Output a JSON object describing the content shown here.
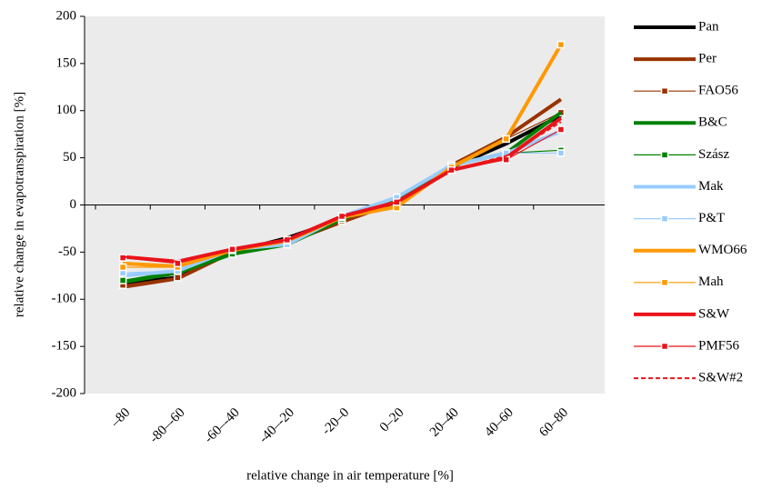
{
  "chart_data": {
    "type": "line",
    "x_label": "relative change in air temperature [%]",
    "y_label": "relative change in evapotranspiration [%]",
    "categories": [
      "–80",
      "-80–-60",
      "-60–-40",
      "-40–-20",
      "-20–0",
      "0–20",
      "20–40",
      "40–60",
      "60–80"
    ],
    "ylim": [
      -200,
      200
    ],
    "yticks": [
      -200,
      -150,
      -100,
      -50,
      0,
      50,
      100,
      150,
      200
    ],
    "legend": "right",
    "series": [
      {
        "name": "Pan",
        "color": "#000000",
        "style": "bold",
        "values": [
          -83,
          -77,
          -50,
          -35,
          -15,
          5,
          40,
          65,
          95
        ]
      },
      {
        "name": "Per",
        "color": "#993300",
        "style": "bold",
        "values": [
          -87,
          -78,
          -50,
          -40,
          -18,
          3,
          42,
          72,
          112
        ]
      },
      {
        "name": "FAO56",
        "color": "#993300",
        "style": "marked",
        "values": [
          -85,
          -77,
          -50,
          -40,
          -17,
          3,
          42,
          70,
          98
        ]
      },
      {
        "name": "B&C",
        "color": "#008000",
        "style": "bold",
        "values": [
          -82,
          -72,
          -52,
          -42,
          -15,
          5,
          42,
          55,
          98
        ]
      },
      {
        "name": "Szász",
        "color": "#008000",
        "style": "marked",
        "values": [
          -80,
          -70,
          -52,
          -42,
          -15,
          5,
          42,
          55,
          58
        ]
      },
      {
        "name": "Mak",
        "color": "#99ccff",
        "style": "bold",
        "values": [
          -75,
          -70,
          -47,
          -42,
          -12,
          8,
          42,
          55,
          78
        ]
      },
      {
        "name": "P&T",
        "color": "#99ccff",
        "style": "marked",
        "values": [
          -72,
          -70,
          -47,
          -42,
          -12,
          8,
          42,
          55,
          55
        ]
      },
      {
        "name": "WMO66",
        "color": "#ff9900",
        "style": "bold",
        "values": [
          -62,
          -65,
          -48,
          -38,
          -13,
          -2,
          40,
          70,
          170
        ]
      },
      {
        "name": "Mah",
        "color": "#ff9900",
        "style": "marked",
        "values": [
          -66,
          -66,
          -48,
          -38,
          -13,
          -3,
          40,
          70,
          170
        ]
      },
      {
        "name": "S&W",
        "color": "#e8141a",
        "style": "bold",
        "values": [
          -55,
          -60,
          -47,
          -37,
          -12,
          3,
          37,
          50,
          92
        ]
      },
      {
        "name": "PMF56",
        "color": "#e8141a",
        "style": "marked",
        "values": [
          -56,
          -62,
          -47,
          -37,
          -12,
          3,
          37,
          48,
          80
        ]
      },
      {
        "name": "S&W#2",
        "color": "#e8141a",
        "style": "dashed",
        "values": [
          -55,
          -60,
          -47,
          -37,
          -12,
          3,
          37,
          52,
          88
        ]
      }
    ]
  }
}
